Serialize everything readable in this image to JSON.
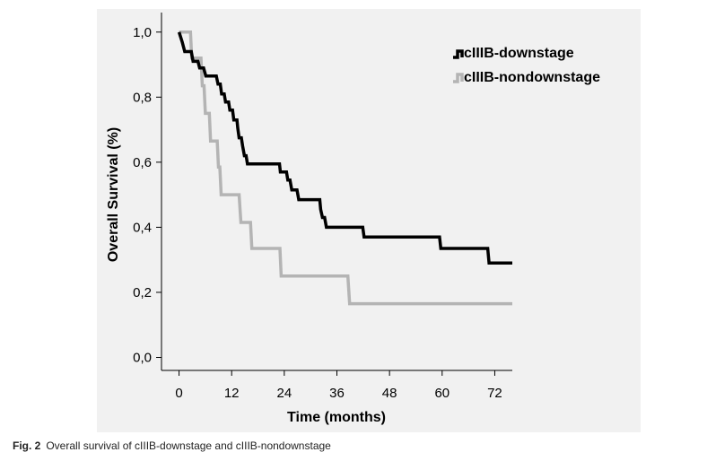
{
  "caption": {
    "label": "Fig. 2",
    "text": "Overall survival of cIIIB-downstage and cIIIB-nondownstage"
  },
  "colors": {
    "panel_background": "#f1f1f1",
    "axis": "#000000"
  },
  "chart_data": {
    "type": "line",
    "step": true,
    "xlabel": "Time (months)",
    "ylabel": "Overall Survival (%)",
    "xlim": [
      -4,
      76
    ],
    "ylim": [
      -0.04,
      1.06
    ],
    "x_ticks": [
      0,
      12,
      24,
      36,
      48,
      60,
      72
    ],
    "x_tick_labels": [
      "0",
      "12",
      "24",
      "36",
      "48",
      "60",
      "72"
    ],
    "y_ticks": [
      0.0,
      0.2,
      0.4,
      0.6,
      0.8,
      1.0
    ],
    "y_tick_labels": [
      "0,0",
      "0,2",
      "0,4",
      "0,6",
      "0,8",
      "1,0"
    ],
    "legend_position": "top-right",
    "series": [
      {
        "name": "cIIIB-downstage",
        "color": "#000000",
        "points": [
          [
            0,
            1.0
          ],
          [
            0.7,
            0.97
          ],
          [
            1.3,
            0.94
          ],
          [
            2.8,
            0.94
          ],
          [
            3.2,
            0.91
          ],
          [
            4.3,
            0.91
          ],
          [
            4.7,
            0.89
          ],
          [
            5.6,
            0.89
          ],
          [
            6.1,
            0.865
          ],
          [
            8.5,
            0.865
          ],
          [
            8.9,
            0.84
          ],
          [
            9.4,
            0.84
          ],
          [
            9.7,
            0.81
          ],
          [
            10.3,
            0.81
          ],
          [
            10.6,
            0.785
          ],
          [
            11.3,
            0.785
          ],
          [
            11.6,
            0.76
          ],
          [
            12.2,
            0.76
          ],
          [
            12.5,
            0.73
          ],
          [
            13.2,
            0.73
          ],
          [
            13.4,
            0.705
          ],
          [
            13.7,
            0.675
          ],
          [
            14.2,
            0.675
          ],
          [
            14.5,
            0.65
          ],
          [
            14.9,
            0.62
          ],
          [
            15.3,
            0.62
          ],
          [
            15.6,
            0.595
          ],
          [
            22.9,
            0.595
          ],
          [
            23.1,
            0.57
          ],
          [
            24.5,
            0.57
          ],
          [
            24.8,
            0.545
          ],
          [
            25.3,
            0.545
          ],
          [
            25.7,
            0.515
          ],
          [
            26.9,
            0.515
          ],
          [
            27.3,
            0.485
          ],
          [
            32.1,
            0.485
          ],
          [
            32.3,
            0.455
          ],
          [
            32.7,
            0.43
          ],
          [
            33.2,
            0.43
          ],
          [
            33.6,
            0.4
          ],
          [
            41.9,
            0.4
          ],
          [
            42.2,
            0.37
          ],
          [
            59.4,
            0.37
          ],
          [
            59.7,
            0.335
          ],
          [
            70.4,
            0.335
          ],
          [
            70.7,
            0.29
          ],
          [
            76,
            0.29
          ]
        ]
      },
      {
        "name": "cIIIB-nondownstage",
        "color": "#b4b4b4",
        "points": [
          [
            0,
            1.0
          ],
          [
            2.6,
            1.0
          ],
          [
            2.9,
            0.92
          ],
          [
            5.0,
            0.92
          ],
          [
            5.3,
            0.835
          ],
          [
            5.7,
            0.835
          ],
          [
            6.0,
            0.75
          ],
          [
            6.9,
            0.75
          ],
          [
            7.2,
            0.665
          ],
          [
            8.7,
            0.665
          ],
          [
            9.0,
            0.585
          ],
          [
            9.3,
            0.585
          ],
          [
            9.6,
            0.5
          ],
          [
            13.7,
            0.5
          ],
          [
            14.1,
            0.415
          ],
          [
            16.3,
            0.415
          ],
          [
            16.6,
            0.335
          ],
          [
            23.0,
            0.335
          ],
          [
            23.3,
            0.25
          ],
          [
            38.5,
            0.25
          ],
          [
            38.9,
            0.165
          ],
          [
            76,
            0.165
          ]
        ]
      }
    ]
  }
}
